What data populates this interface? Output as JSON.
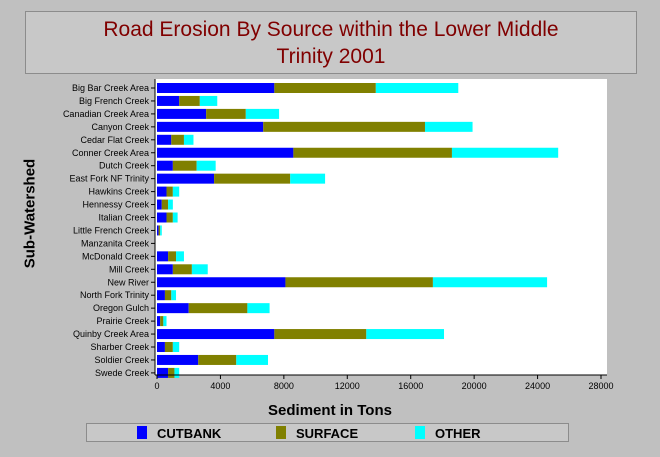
{
  "chart_data": {
    "type": "bar",
    "orientation": "horizontal",
    "stacked": true,
    "title": "Road Erosion By Source within the Lower Middle Trinity 2001",
    "title_lines": [
      "Road Erosion By Source within the Lower Middle",
      "Trinity 2001"
    ],
    "xlabel": "Sediment in Tons",
    "ylabel": "Sub-Watershed",
    "xlim": [
      0,
      28000
    ],
    "x_ticks": [
      "0",
      "4000",
      "8000",
      "12000",
      "16000",
      "20000",
      "24000",
      "28000"
    ],
    "legend_position": "bottom",
    "categories": [
      "Big Bar Creek Area",
      "Big French Creek",
      "Canadian Creek Area",
      "Canyon Creek",
      "Cedar Flat Creek",
      "Conner Creek Area",
      "Dutch Creek",
      "East Fork NF Trinity",
      "Hawkins Creek",
      "Hennessy Creek",
      "Italian Creek",
      "Little French Creek",
      "Manzanita Creek",
      "McDonald Creek",
      "Mill Creek",
      "New River",
      "North Fork Trinity",
      "Oregon Gulch",
      "Prairie Creek",
      "Quinby Creek Area",
      "Sharber Creek",
      "Soldier Creek",
      "Swede Creek"
    ],
    "series": [
      {
        "name": "CUTBANK",
        "color": "#0000ff",
        "values": [
          7400,
          1400,
          3100,
          6700,
          900,
          8600,
          1000,
          3600,
          600,
          300,
          600,
          100,
          0,
          700,
          1000,
          8100,
          500,
          2000,
          200,
          7400,
          500,
          2600,
          700
        ]
      },
      {
        "name": "SURFACE",
        "color": "#808000",
        "values": [
          6400,
          1300,
          2500,
          10200,
          800,
          10000,
          1500,
          4800,
          400,
          400,
          400,
          100,
          0,
          500,
          1200,
          9300,
          400,
          3700,
          200,
          5800,
          500,
          2400,
          400
        ]
      },
      {
        "name": "OTHER",
        "color": "#00ffff",
        "values": [
          5200,
          1100,
          2100,
          3000,
          600,
          6700,
          1200,
          2200,
          400,
          300,
          300,
          100,
          0,
          500,
          1000,
          7200,
          300,
          1400,
          200,
          4900,
          400,
          2000,
          300
        ]
      }
    ]
  }
}
